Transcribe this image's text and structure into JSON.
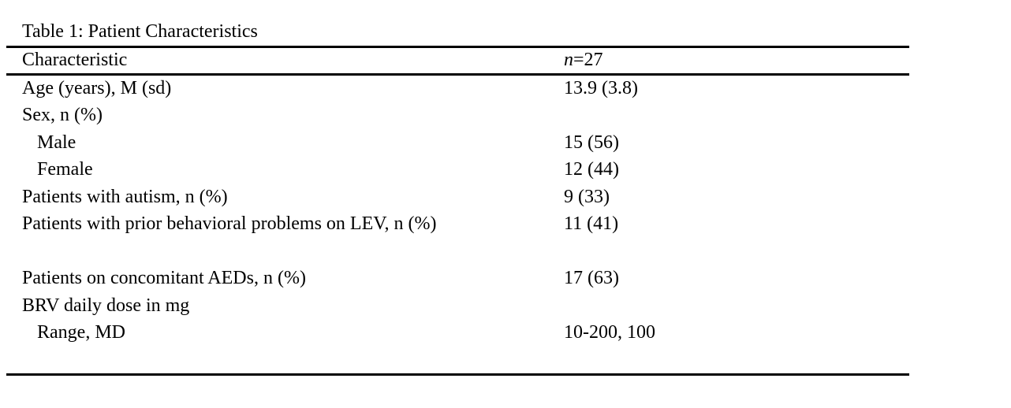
{
  "table": {
    "caption": "Table 1: Patient Characteristics",
    "header": {
      "characteristic": "Characteristic",
      "n_symbol": "n",
      "n_rest": "=27"
    },
    "rows": [
      {
        "label": "Age (years), M (sd)",
        "value": "13.9 (3.8)",
        "indent": false
      },
      {
        "label": "Sex, n (%)",
        "value": "",
        "indent": false
      },
      {
        "label": "Male",
        "value": "15 (56)",
        "indent": true
      },
      {
        "label": "Female",
        "value": "12 (44)",
        "indent": true
      },
      {
        "label": "Patients with autism, n (%)",
        "value": "9 (33)",
        "indent": false
      },
      {
        "label": "Patients with prior behavioral problems on LEV, n (%)",
        "value": "11 (41)",
        "indent": false
      },
      {
        "label": "",
        "value": "",
        "indent": false
      },
      {
        "label": "Patients on concomitant AEDs, n (%)",
        "value": "17 (63)",
        "indent": false
      },
      {
        "label": "BRV daily dose in mg",
        "value": "",
        "indent": false
      },
      {
        "label": "Range, MD",
        "value": "10-200, 100",
        "indent": true
      },
      {
        "label": "",
        "value": "",
        "indent": false
      }
    ],
    "colors": {
      "background": "#ffffff",
      "text": "#000000",
      "rule": "#000000"
    }
  }
}
